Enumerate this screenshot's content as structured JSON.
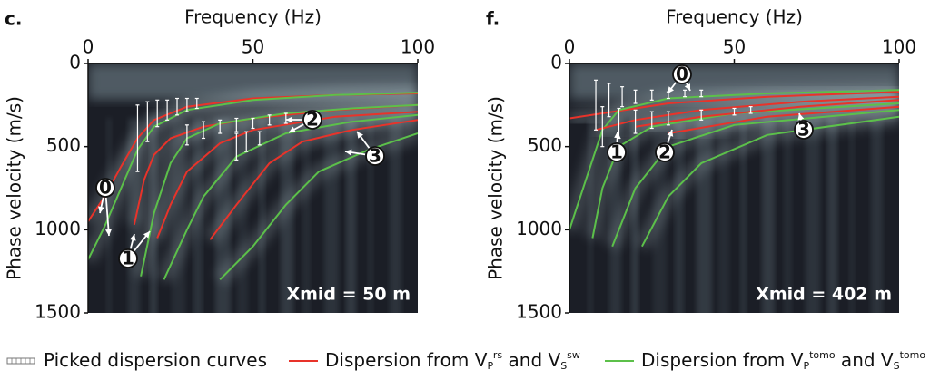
{
  "chart_data": [
    {
      "type": "line",
      "panel_label": "c.",
      "xlabel": "Frequency (Hz)",
      "ylabel": "Phase velocity (m/s)",
      "x_axis_position": "top",
      "y_inverted": true,
      "xlim": [
        0,
        100
      ],
      "ylim": [
        0,
        1500
      ],
      "xticks": [
        0,
        50,
        100
      ],
      "yticks": [
        0,
        500,
        1000,
        1500
      ],
      "annotation": "Xmid = 50 m",
      "mode_labels": [
        "0",
        "1",
        "2",
        "3"
      ],
      "series": [
        {
          "color": "#e8332a",
          "x": [
            0,
            5,
            10,
            15,
            20,
            30,
            50,
            75,
            100
          ],
          "values": [
            950,
            800,
            620,
            450,
            340,
            260,
            210,
            190,
            180
          ]
        },
        {
          "color": "#5cc04a",
          "x": [
            0,
            5,
            10,
            15,
            20,
            30,
            50,
            75,
            100
          ],
          "values": [
            1180,
            980,
            750,
            520,
            380,
            280,
            220,
            190,
            175
          ]
        },
        {
          "color": "#e8332a",
          "x": [
            14,
            17,
            20,
            25,
            35,
            50,
            75,
            100
          ],
          "values": [
            970,
            700,
            550,
            450,
            380,
            330,
            280,
            250
          ]
        },
        {
          "color": "#5cc04a",
          "x": [
            16,
            20,
            25,
            30,
            40,
            60,
            80,
            100
          ],
          "values": [
            1280,
            900,
            600,
            450,
            360,
            300,
            270,
            250
          ]
        },
        {
          "color": "#e8332a",
          "x": [
            21,
            25,
            30,
            40,
            50,
            75,
            100
          ],
          "values": [
            1050,
            850,
            650,
            480,
            400,
            320,
            290
          ]
        },
        {
          "color": "#5cc04a",
          "x": [
            23,
            30,
            35,
            45,
            60,
            80,
            100
          ],
          "values": [
            1300,
            1000,
            800,
            560,
            420,
            350,
            310
          ]
        },
        {
          "color": "#e8332a",
          "x": [
            37,
            45,
            55,
            65,
            80,
            100
          ],
          "values": [
            1060,
            850,
            600,
            470,
            400,
            340
          ]
        },
        {
          "color": "#5cc04a",
          "x": [
            40,
            50,
            60,
            70,
            85,
            100
          ],
          "values": [
            1300,
            1100,
            850,
            650,
            520,
            420
          ]
        }
      ],
      "picks": [
        {
          "color": "#ffffff",
          "x": [
            15,
            18,
            21,
            24,
            27,
            30,
            33
          ],
          "values": [
            450,
            350,
            300,
            280,
            260,
            250,
            240
          ],
          "errors": [
            200,
            120,
            80,
            60,
            50,
            40,
            30
          ]
        },
        {
          "color": "#ffffff",
          "x": [
            30,
            35,
            40,
            45,
            50,
            55,
            60
          ],
          "values": [
            430,
            400,
            380,
            370,
            360,
            340,
            330
          ],
          "errors": [
            60,
            50,
            40,
            40,
            30,
            30,
            30
          ]
        },
        {
          "color": "#ffffff",
          "x": [
            45,
            48,
            52
          ],
          "values": [
            500,
            470,
            450
          ],
          "errors": [
            80,
            60,
            40
          ]
        }
      ]
    },
    {
      "type": "line",
      "panel_label": "f.",
      "xlabel": "Frequency (Hz)",
      "ylabel": "Phase velocity (m/s)",
      "x_axis_position": "top",
      "y_inverted": true,
      "xlim": [
        0,
        100
      ],
      "ylim": [
        0,
        1500
      ],
      "xticks": [
        0,
        50,
        100
      ],
      "yticks": [
        0,
        500,
        1000,
        1500
      ],
      "annotation": "Xmid = 402 m",
      "mode_labels": [
        "0",
        "1",
        "2",
        "3"
      ],
      "series": [
        {
          "color": "#e8332a",
          "x": [
            0,
            10,
            30,
            60,
            100
          ],
          "values": [
            330,
            300,
            240,
            200,
            170
          ]
        },
        {
          "color": "#5cc04a",
          "x": [
            0,
            5,
            10,
            15,
            30,
            60,
            100
          ],
          "values": [
            1000,
            700,
            400,
            280,
            210,
            180,
            160
          ]
        },
        {
          "color": "#e8332a",
          "x": [
            8,
            20,
            40,
            70,
            100
          ],
          "values": [
            400,
            340,
            280,
            230,
            200
          ]
        },
        {
          "color": "#5cc04a",
          "x": [
            7,
            10,
            15,
            25,
            50,
            100
          ],
          "values": [
            1050,
            750,
            500,
            380,
            300,
            240
          ]
        },
        {
          "color": "#e8332a",
          "x": [
            20,
            40,
            70,
            100
          ],
          "values": [
            380,
            320,
            260,
            220
          ]
        },
        {
          "color": "#5cc04a",
          "x": [
            13,
            20,
            30,
            50,
            100
          ],
          "values": [
            1100,
            750,
            500,
            370,
            280
          ]
        },
        {
          "color": "#e8332a",
          "x": [
            30,
            60,
            100
          ],
          "values": [
            420,
            320,
            260
          ]
        },
        {
          "color": "#5cc04a",
          "x": [
            22,
            30,
            40,
            60,
            100
          ],
          "values": [
            1100,
            800,
            600,
            430,
            320
          ]
        }
      ],
      "picks": [
        {
          "color": "#ffffff",
          "x": [
            8,
            12,
            16,
            20,
            25,
            30,
            35,
            40
          ],
          "values": [
            250,
            220,
            200,
            200,
            190,
            190,
            180,
            180
          ],
          "errors": [
            150,
            100,
            60,
            40,
            30,
            20,
            20,
            20
          ]
        },
        {
          "color": "#ffffff",
          "x": [
            10,
            15,
            20,
            25,
            30,
            40,
            50,
            55
          ],
          "values": [
            380,
            360,
            350,
            340,
            330,
            310,
            290,
            280
          ],
          "errors": [
            120,
            90,
            70,
            50,
            40,
            30,
            20,
            20
          ]
        }
      ]
    }
  ],
  "legend": [
    {
      "color": "#ffffff",
      "runs": [
        {
          "text": "Picked dispersion curves"
        }
      ]
    },
    {
      "color": "#e8332a",
      "runs": [
        {
          "text": "Dispersion from V"
        },
        {
          "text": "P",
          "shift": "sub"
        },
        {
          "text": "rs",
          "shift": "super"
        },
        {
          "text": " and V"
        },
        {
          "text": "S",
          "shift": "sub"
        },
        {
          "text": "sw",
          "shift": "super"
        }
      ]
    },
    {
      "color": "#5cc04a",
      "runs": [
        {
          "text": "Dispersion from V"
        },
        {
          "text": "P",
          "shift": "sub"
        },
        {
          "text": "tomo",
          "shift": "super"
        },
        {
          "text": " and V"
        },
        {
          "text": "S",
          "shift": "sub"
        },
        {
          "text": "tomo",
          "shift": "super"
        }
      ]
    }
  ]
}
